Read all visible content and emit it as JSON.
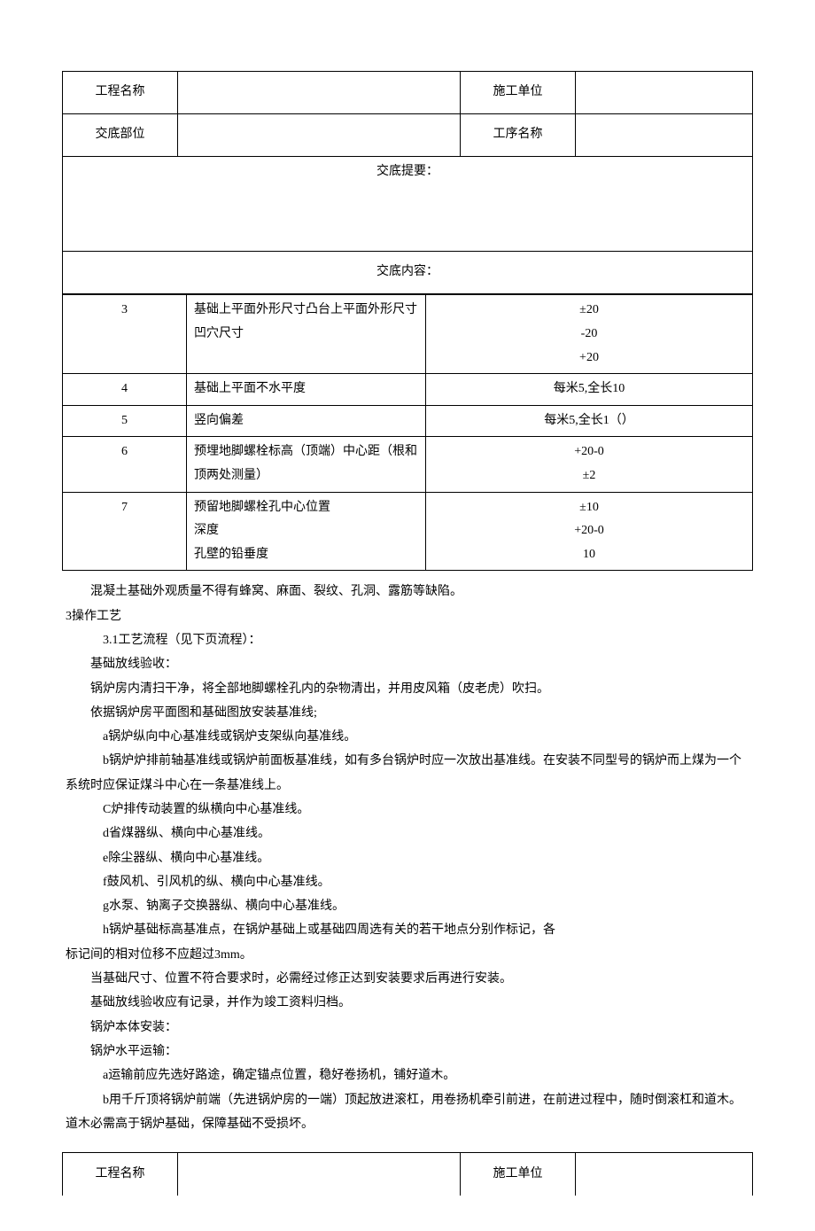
{
  "header": {
    "project_label": "工程名称",
    "project_value": "",
    "unit_label": "施工单位",
    "unit_value": "",
    "part_label": "交底部位",
    "part_value": "",
    "process_label": "工序名称",
    "process_value": ""
  },
  "summary_label": "交底提要：",
  "content_label": "交底内容：",
  "table": {
    "rows": [
      {
        "num": "3",
        "desc": "基础上平面外形尺寸凸台上平面外形尺寸凹穴尺寸",
        "val": "±20\n-20\n+20"
      },
      {
        "num": "4",
        "desc": "基础上平面不水平度",
        "val": "每米5,全长10"
      },
      {
        "num": "5",
        "desc": "竖向偏差",
        "val": "每米5,全长1（）"
      },
      {
        "num": "6",
        "desc": "预埋地脚螺栓标高（顶端）中心距（根和顶两处测量）",
        "val": "+20-0\n±2"
      },
      {
        "num": "7",
        "desc": "预留地脚螺栓孔中心位置\n深度\n孔壁的铅垂度",
        "val": "±10\n+20-0\n10"
      }
    ]
  },
  "body_text": {
    "p1": "混凝土基础外观质量不得有蜂窝、麻面、裂纹、孔洞、露筋等缺陷。",
    "p2": "3操作工艺",
    "p3": "3.1工艺流程（见下页流程）：",
    "p4": "基础放线验收：",
    "p5": "锅炉房内清扫干净，将全部地脚螺栓孔内的杂物清出，并用皮风箱（皮老虎）吹扫。",
    "p6": "依据锅炉房平面图和基础图放安装基准线;",
    "p7": "a锅炉纵向中心基准线或锅炉支架纵向基准线。",
    "p8": "b锅炉炉排前轴基准线或锅炉前面板基准线，如有多台锅炉时应一次放出基准线。在安装不同型号的锅炉而上煤为一个系统时应保证煤斗中心在一条基准线上。",
    "p9": "C炉排传动装置的纵横向中心基准线。",
    "p10": "d省煤器纵、横向中心基准线。",
    "p11": "e除尘器纵、横向中心基准线。",
    "p12": "f鼓风机、引风机的纵、横向中心基准线。",
    "p13": "g水泵、钠离子交换器纵、横向中心基准线。",
    "p14": "h锅炉基础标高基准点，在锅炉基础上或基础四周选有关的若干地点分别作标记，各",
    "p15": "标记间的相对位移不应超过3mm。",
    "p16": "当基础尺寸、位置不符合要求时，必需经过修正达到安装要求后再进行安装。",
    "p17": "基础放线验收应有记录，并作为竣工资料归档。",
    "p18": "锅炉本体安装：",
    "p19": "锅炉水平运输：",
    "p20": "a运输前应先选好路途，确定锚点位置，稳好卷扬机，铺好道木。",
    "p21": "b用千斤顶将锅炉前端（先进锅炉房的一端）顶起放进滚杠，用卷扬机牵引前进，在前进过程中，随时倒滚杠和道木。道木必需高于锅炉基础，保障基础不受损坏。"
  },
  "footer": {
    "project_label": "工程名称",
    "project_value": "",
    "unit_label": "施工单位",
    "unit_value": ""
  },
  "style": {
    "font_size": 14,
    "border_color": "#000000",
    "background": "#ffffff"
  }
}
